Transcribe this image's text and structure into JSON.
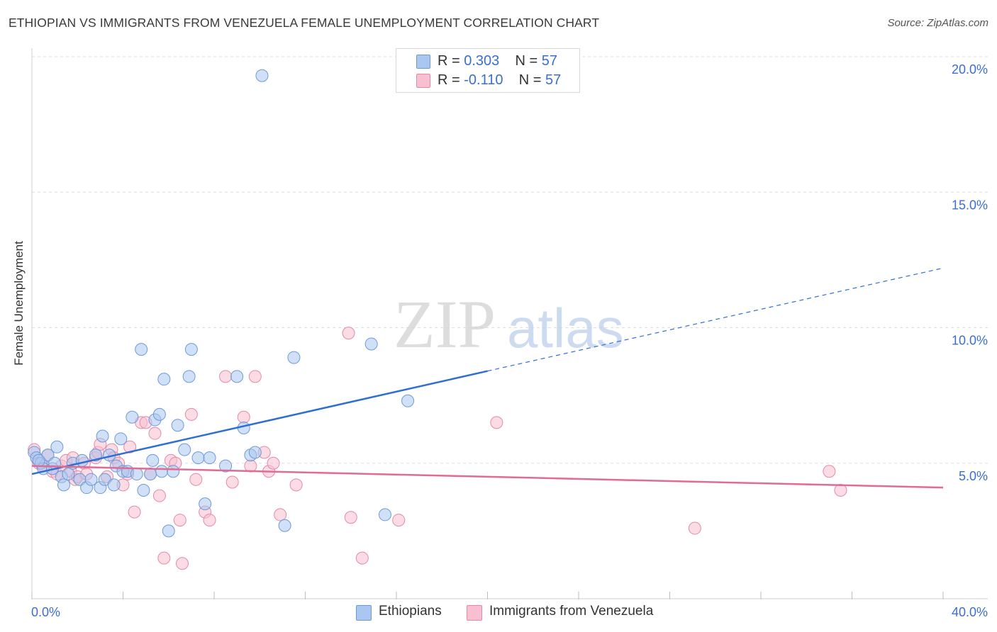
{
  "header": {
    "title": "ETHIOPIAN VS IMMIGRANTS FROM VENEZUELA FEMALE UNEMPLOYMENT CORRELATION CHART",
    "source": "Source: ZipAtlas.com"
  },
  "watermark": {
    "zip": "ZIP",
    "atlas": "atlas"
  },
  "legend": {
    "rows": [
      {
        "r_label": "R = ",
        "r_value": "0.303",
        "n_label": "N = ",
        "n_value": "57"
      },
      {
        "r_label": "R = ",
        "r_value": "-0.110",
        "n_label": "N = ",
        "n_value": "57"
      }
    ]
  },
  "bottom_legend": {
    "series_a": "Ethiopians",
    "series_b": "Immigrants from Venezuela"
  },
  "colors": {
    "series_a_fill": "#a9c7f0",
    "series_a_stroke": "#6e9ad8",
    "series_a_line": "#2f6fd0",
    "series_b_fill": "#f7bfd0",
    "series_b_stroke": "#e48aa8",
    "series_b_line": "#e06b95",
    "axis_label": "#3a6fd0",
    "grid": "#dddddd"
  },
  "chart_data": {
    "type": "scatter",
    "title": "ETHIOPIAN VS IMMIGRANTS FROM VENEZUELA FEMALE UNEMPLOYMENT CORRELATION CHART",
    "xlabel": "",
    "ylabel": "Female Unemployment",
    "xlim": [
      0,
      40
    ],
    "ylim": [
      0,
      20
    ],
    "x_tick_labels": [
      "0.0%",
      "40.0%"
    ],
    "y_ticks": [
      5,
      10,
      15,
      20
    ],
    "y_tick_labels": [
      "5.0%",
      "10.0%",
      "15.0%",
      "20.0%"
    ],
    "grid": "horizontal dashed",
    "legend_position": "top-center",
    "series": [
      {
        "name": "Ethiopians",
        "r": 0.303,
        "n": 57,
        "trend": {
          "x": [
            0,
            20
          ],
          "y": [
            4.6,
            8.4
          ],
          "dashed_to": [
            40,
            12.2
          ]
        },
        "points": [
          [
            0.1,
            5.4
          ],
          [
            0.2,
            5.2
          ],
          [
            0.4,
            5.0
          ],
          [
            0.5,
            4.8
          ],
          [
            0.7,
            5.3
          ],
          [
            0.9,
            4.8
          ],
          [
            1.1,
            5.6
          ],
          [
            1.3,
            4.5
          ],
          [
            1.4,
            4.2
          ],
          [
            1.6,
            4.6
          ],
          [
            1.8,
            5.0
          ],
          [
            2.1,
            4.4
          ],
          [
            2.2,
            5.1
          ],
          [
            2.4,
            4.1
          ],
          [
            2.6,
            4.4
          ],
          [
            2.8,
            5.3
          ],
          [
            3.0,
            4.1
          ],
          [
            3.1,
            6.0
          ],
          [
            3.2,
            4.4
          ],
          [
            3.4,
            5.3
          ],
          [
            3.6,
            4.2
          ],
          [
            3.7,
            4.9
          ],
          [
            3.9,
            5.9
          ],
          [
            4.0,
            4.7
          ],
          [
            4.2,
            4.7
          ],
          [
            4.4,
            6.7
          ],
          [
            4.6,
            4.6
          ],
          [
            4.8,
            9.2
          ],
          [
            4.9,
            4.0
          ],
          [
            5.2,
            4.6
          ],
          [
            5.3,
            5.1
          ],
          [
            5.4,
            6.6
          ],
          [
            5.6,
            6.8
          ],
          [
            5.7,
            4.7
          ],
          [
            5.8,
            8.1
          ],
          [
            6.0,
            2.5
          ],
          [
            6.2,
            4.7
          ],
          [
            6.4,
            6.4
          ],
          [
            6.7,
            5.5
          ],
          [
            6.9,
            8.2
          ],
          [
            7.0,
            9.2
          ],
          [
            7.3,
            5.2
          ],
          [
            7.6,
            3.5
          ],
          [
            7.8,
            5.2
          ],
          [
            8.5,
            4.9
          ],
          [
            9.0,
            8.2
          ],
          [
            9.3,
            6.3
          ],
          [
            9.6,
            5.3
          ],
          [
            9.8,
            5.4
          ],
          [
            10.1,
            19.3
          ],
          [
            11.1,
            2.7
          ],
          [
            11.5,
            8.9
          ],
          [
            14.9,
            9.4
          ],
          [
            15.5,
            3.1
          ],
          [
            16.5,
            7.3
          ],
          [
            0.3,
            5.1
          ],
          [
            1.0,
            5.0
          ]
        ]
      },
      {
        "name": "Immigrants from Venezuela",
        "r": -0.11,
        "n": 57,
        "trend": {
          "x": [
            0,
            40
          ],
          "y": [
            4.9,
            4.1
          ]
        },
        "points": [
          [
            0.1,
            5.5
          ],
          [
            0.3,
            5.0
          ],
          [
            0.5,
            4.9
          ],
          [
            0.7,
            5.3
          ],
          [
            0.9,
            4.7
          ],
          [
            1.1,
            4.6
          ],
          [
            1.3,
            4.9
          ],
          [
            1.5,
            5.1
          ],
          [
            1.7,
            4.7
          ],
          [
            1.8,
            5.2
          ],
          [
            1.9,
            4.4
          ],
          [
            2.0,
            4.5
          ],
          [
            2.3,
            5.0
          ],
          [
            2.4,
            4.6
          ],
          [
            2.8,
            5.2
          ],
          [
            2.9,
            5.4
          ],
          [
            3.0,
            5.7
          ],
          [
            3.3,
            4.5
          ],
          [
            3.5,
            5.5
          ],
          [
            3.6,
            5.2
          ],
          [
            3.8,
            5.0
          ],
          [
            4.0,
            4.2
          ],
          [
            4.2,
            4.6
          ],
          [
            4.3,
            5.6
          ],
          [
            4.5,
            3.2
          ],
          [
            4.8,
            6.5
          ],
          [
            5.0,
            6.5
          ],
          [
            5.2,
            4.6
          ],
          [
            5.4,
            6.1
          ],
          [
            5.6,
            3.8
          ],
          [
            5.8,
            1.5
          ],
          [
            6.1,
            5.1
          ],
          [
            6.3,
            5.0
          ],
          [
            6.5,
            2.9
          ],
          [
            6.6,
            1.3
          ],
          [
            7.0,
            6.8
          ],
          [
            7.2,
            4.4
          ],
          [
            7.6,
            3.2
          ],
          [
            7.8,
            2.9
          ],
          [
            8.5,
            8.2
          ],
          [
            8.8,
            4.3
          ],
          [
            9.3,
            6.7
          ],
          [
            9.6,
            4.9
          ],
          [
            9.8,
            8.2
          ],
          [
            10.2,
            5.4
          ],
          [
            10.4,
            4.7
          ],
          [
            10.6,
            5.0
          ],
          [
            10.9,
            3.1
          ],
          [
            11.6,
            4.2
          ],
          [
            13.9,
            9.8
          ],
          [
            14.0,
            3.0
          ],
          [
            14.5,
            1.5
          ],
          [
            16.1,
            2.9
          ],
          [
            20.4,
            6.5
          ],
          [
            29.1,
            2.6
          ],
          [
            35.0,
            4.7
          ],
          [
            35.5,
            4.0
          ]
        ]
      }
    ]
  }
}
